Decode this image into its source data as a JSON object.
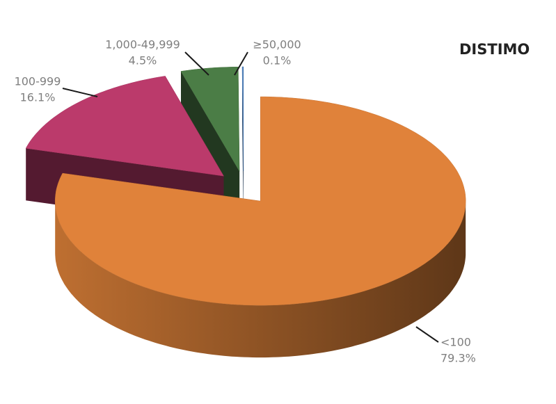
{
  "chart_data": {
    "type": "pie",
    "brand": "DISTIMO",
    "categories": [
      "<100",
      "100-999",
      "1,000-49,999",
      "≥50,000"
    ],
    "values": [
      79.3,
      16.1,
      4.5,
      0.1
    ],
    "value_labels": [
      "79.3%",
      "16.1%",
      "4.5%",
      "0.1%"
    ],
    "colors": [
      "#e0823a",
      "#bb3a6b",
      "#4b7d46",
      "#4f81bd"
    ]
  }
}
